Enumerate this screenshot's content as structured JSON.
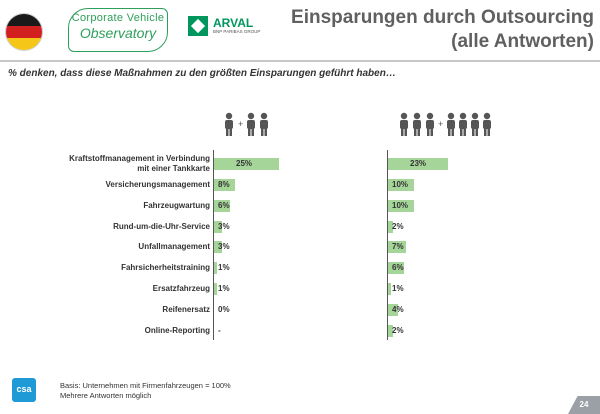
{
  "header": {
    "title_line1": "Einsparungen durch Outsourcing",
    "title_line2": "(alle Antworten)",
    "logo_cvo_line1": "Corporate Vehicle",
    "logo_cvo_line2": "Observatory",
    "logo_arval": "ARVAL",
    "logo_arval_sub": "BNP PARIBAS GROUP"
  },
  "subtitle": "% denken, dass diese Maßnahmen zu den größten Einsparungen geführt haben…",
  "colors": {
    "bar": "#a6d59a",
    "accent": "#2e9e5b"
  },
  "chart_data": {
    "type": "bar",
    "orientation": "horizontal",
    "categories": [
      "Kraftstoffmanagement in Verbindung mit einer Tankkarte",
      "Versicherungsmanagement",
      "Fahrzeugwartung",
      "Rund-um-die-Uhr-Service",
      "Unfallmanagement",
      "Fahrsicherheitstraining",
      "Ersatzfahrzeug",
      "Reifenersatz",
      "Online-Reporting"
    ],
    "series": [
      {
        "name": "small fleets (1 + 2 people)",
        "values": [
          25,
          8,
          6,
          3,
          3,
          1,
          1,
          0,
          null
        ],
        "labels": [
          "25%",
          "8%",
          "6%",
          "3%",
          "3%",
          "1%",
          "1%",
          "0%",
          "-"
        ]
      },
      {
        "name": "large fleets (3 + 4 people)",
        "values": [
          23,
          10,
          10,
          2,
          7,
          6,
          1,
          4,
          2
        ],
        "labels": [
          "23%",
          "10%",
          "10%",
          "2%",
          "7%",
          "6%",
          "1%",
          "4%",
          "2%"
        ]
      }
    ],
    "xlim": [
      0,
      30
    ]
  },
  "footer": {
    "basis": "Basis: Unternehmen mit Firmenfahrzeugen = 100%",
    "note": "Mehrere Antworten möglich",
    "logo": "csa",
    "page_number": "24"
  }
}
